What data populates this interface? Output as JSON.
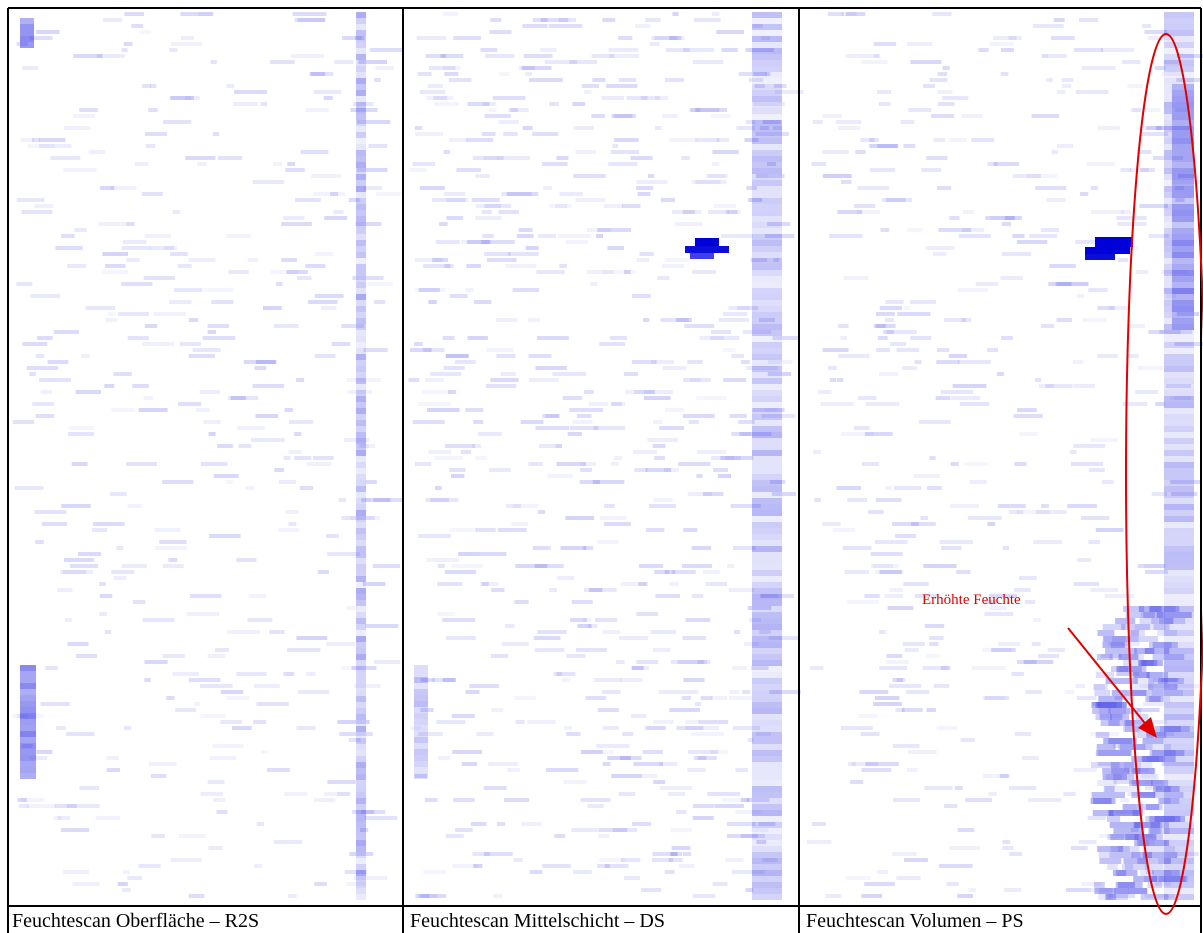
{
  "figure": {
    "panels": [
      {
        "caption": "Feuchtescan Oberfläche – R2S"
      },
      {
        "caption": "Feuchtescan Mittelschicht – DS"
      },
      {
        "caption": "Feuchtescan Volumen – PS"
      }
    ],
    "annotation": "Erhöhte Feuchte"
  }
}
